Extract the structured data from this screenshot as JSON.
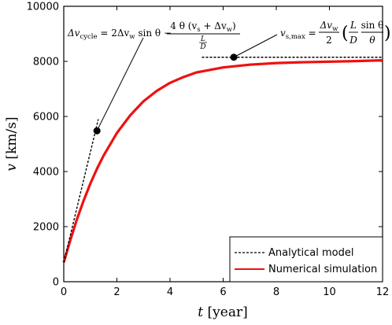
{
  "chart_data": {
    "type": "line",
    "xlabel": "t [year]",
    "xlabel_var": "t",
    "xlabel_unit": "[year]",
    "ylabel": "v [km/s]",
    "ylabel_var": "v",
    "ylabel_unit": "[km/s]",
    "xlim": [
      0,
      12
    ],
    "ylim": [
      0,
      10000
    ],
    "xticks": [
      0,
      2,
      4,
      6,
      8,
      10,
      12
    ],
    "yticks": [
      0,
      2000,
      4000,
      6000,
      8000,
      10000
    ],
    "grid": false,
    "legend": {
      "placement": "bottom-right",
      "entries": [
        {
          "label": "Analytical model",
          "style": "dashed",
          "color": "#000000"
        },
        {
          "label": "Numerical simulation",
          "style": "solid",
          "color": "#ee1111"
        }
      ]
    },
    "series": [
      {
        "name": "Numerical simulation",
        "color": "#ee1111",
        "x": [
          0,
          0.25,
          0.5,
          0.75,
          1,
          1.25,
          1.5,
          2,
          2.5,
          3,
          3.5,
          4,
          4.5,
          5,
          6,
          7,
          8,
          9,
          10,
          11,
          12
        ],
        "y": [
          700,
          1520,
          2280,
          2950,
          3560,
          4100,
          4580,
          5400,
          6040,
          6550,
          6930,
          7220,
          7430,
          7600,
          7780,
          7880,
          7940,
          7970,
          7990,
          8010,
          8040
        ]
      },
      {
        "name": "Analytical model",
        "color": "#000000",
        "style": "dashed",
        "segments": [
          {
            "x": [
              0,
              1.3
            ],
            "y": [
              700,
              5900
            ]
          },
          {
            "x": [
              5.2,
              12
            ],
            "y": [
              8150,
              8150
            ]
          }
        ]
      }
    ],
    "markers": [
      {
        "x": 1.25,
        "y": 5480
      },
      {
        "x": 6.4,
        "y": 8150
      }
    ],
    "annotations": {
      "cycle_formula": {
        "lhs": "Δv",
        "lhs_sub": "cycle",
        "eq": " = 2Δv",
        "w_sub": "w",
        "sin": " sin θ − ",
        "num": "4 θ (v",
        "num_s": "s",
        "num_mid": " + Δv",
        "num_w": "w",
        "num_end": ")",
        "den_top": "L",
        "den_bot": "D"
      },
      "max_formula": {
        "lhs": "v",
        "lhs_sub": "s,max",
        "eq": " = ",
        "f1_num": "Δv",
        "f1_num_sub": "w",
        "f1_den": "2",
        "p_open": "(",
        "f2_num": "L",
        "f2_den": "D",
        "f3_num": "sin θ",
        "f3_den": "θ",
        "p_close": ")"
      }
    }
  }
}
